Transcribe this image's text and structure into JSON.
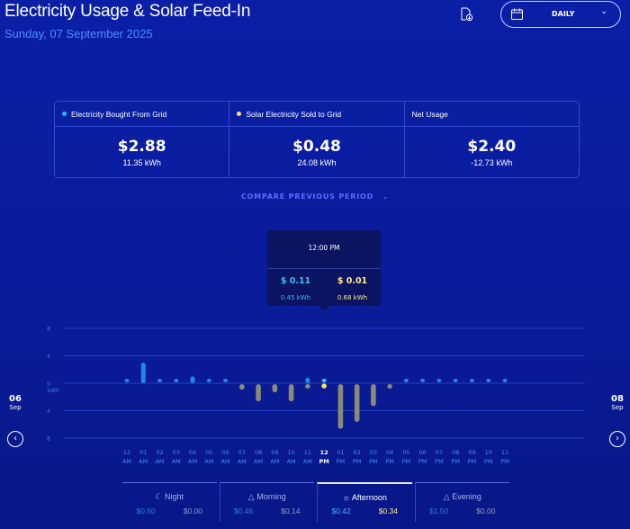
{
  "header": {
    "title": "Electricity Usage & Solar Feed-In",
    "date": "Sunday, 07 September 2025",
    "period_label": "DAILY",
    "icons": [
      "export-icon",
      "calendar-icon",
      "chevron-down-icon"
    ]
  },
  "summary": [
    {
      "label": "Electricity Bought From Grid",
      "cost": "$2.88",
      "kwh": "11.35 kWh",
      "dot_color": "#29b6f6"
    },
    {
      "label": "Solar Electricity Sold to Grid",
      "cost": "$0.48",
      "kwh": "24.08 kWh",
      "dot_color": "#ffe066"
    },
    {
      "label": "Net Usage",
      "cost": "$2.40",
      "kwh": "-12.73 kWh"
    }
  ],
  "compare_label": "COMPARE PREVIOUS PERIOD",
  "tooltip": {
    "time": "12:00 PM",
    "bought_cost": "$ 0.11",
    "bought_kwh": "0.45 kWh",
    "sold_cost": "$ 0.01",
    "sold_kwh": "0.68 kWh"
  },
  "nav": {
    "prev_day": "06",
    "prev_month": "Sep",
    "next_day": "08",
    "next_month": "Sep"
  },
  "chart_data": {
    "type": "bar",
    "ylabel": "kWh",
    "y_ticks": [
      "8",
      "4",
      "0",
      "4",
      "8"
    ],
    "ylim": [
      -8,
      8
    ],
    "grid": true,
    "selected_index": 12,
    "categories": [
      [
        "12",
        "AM"
      ],
      [
        "01",
        "AM"
      ],
      [
        "02",
        "AM"
      ],
      [
        "03",
        "AM"
      ],
      [
        "04",
        "AM"
      ],
      [
        "05",
        "AM"
      ],
      [
        "06",
        "AM"
      ],
      [
        "07",
        "AM"
      ],
      [
        "08",
        "AM"
      ],
      [
        "09",
        "AM"
      ],
      [
        "10",
        "AM"
      ],
      [
        "11",
        "AM"
      ],
      [
        "12",
        "PM"
      ],
      [
        "01",
        "PM"
      ],
      [
        "02",
        "PM"
      ],
      [
        "03",
        "PM"
      ],
      [
        "04",
        "PM"
      ],
      [
        "05",
        "PM"
      ],
      [
        "06",
        "PM"
      ],
      [
        "07",
        "PM"
      ],
      [
        "08",
        "PM"
      ],
      [
        "09",
        "PM"
      ],
      [
        "10",
        "PM"
      ],
      [
        "11",
        "PM"
      ]
    ],
    "series": [
      {
        "key": "bought",
        "color": "#1e88e5",
        "values": [
          0.3,
          3.0,
          0.5,
          0.2,
          1.0,
          0.2,
          0.2,
          0,
          0,
          0,
          0,
          0.8,
          0.45,
          0,
          0,
          0,
          0,
          0.3,
          0.3,
          0.3,
          0.3,
          0.3,
          0.3,
          0.3
        ]
      },
      {
        "key": "sold",
        "color": "#8a8a78",
        "values": [
          0,
          0,
          0,
          0,
          0,
          0,
          0,
          0.8,
          2.5,
          1.2,
          2.5,
          0.4,
          0.68,
          6.5,
          5.5,
          3.2,
          0.6,
          0,
          0,
          0,
          0,
          0,
          0,
          0
        ]
      }
    ]
  },
  "periods": [
    {
      "name": "Night",
      "icon": "moon-icon",
      "bought": "$0.50",
      "sold": "$0.00",
      "active": false
    },
    {
      "name": "Morning",
      "icon": "sunrise-icon",
      "bought": "$0.46",
      "sold": "$0.14",
      "active": false
    },
    {
      "name": "Afternoon",
      "icon": "sun-icon",
      "bought": "$0.42",
      "sold": "$0.34",
      "active": true
    },
    {
      "name": "Evening",
      "icon": "sunset-icon",
      "bought": "$1.50",
      "sold": "$0.00",
      "active": false
    }
  ]
}
